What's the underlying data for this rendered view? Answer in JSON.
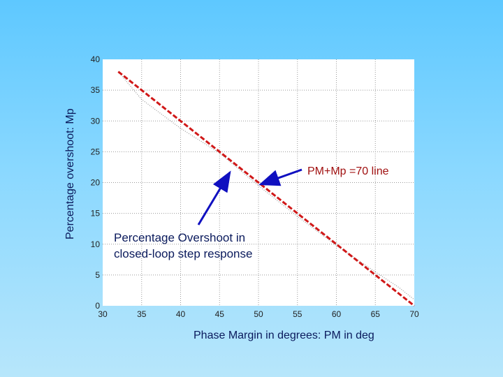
{
  "chart_data": {
    "type": "line",
    "xlabel": "Phase Margin in degrees: PM in deg",
    "ylabel": "Percentage overshoot: Mp",
    "xlim": [
      30,
      70
    ],
    "ylim": [
      0,
      40
    ],
    "xticks": [
      "30",
      "35",
      "40",
      "45",
      "50",
      "55",
      "60",
      "65",
      "70"
    ],
    "yticks": [
      "0",
      "5",
      "10",
      "15",
      "20",
      "25",
      "30",
      "35",
      "40"
    ],
    "grid": true,
    "series": [
      {
        "name": "Percentage Overshoot in closed-loop step response",
        "style": "dotted",
        "color": "#999999",
        "x": [
          32,
          35,
          40,
          45,
          50,
          55,
          60,
          65,
          68,
          70
        ],
        "y": [
          38,
          33.5,
          28.8,
          24.8,
          19.5,
          14.5,
          9.8,
          5.5,
          3,
          1
        ]
      },
      {
        "name": "PM+Mp =70 line",
        "style": "dashed",
        "color": "#d01818",
        "x": [
          32,
          70
        ],
        "y": [
          38,
          0
        ]
      }
    ],
    "annotations": {
      "red_line_label": "PM+Mp =70 line",
      "curve_label_line1": "Percentage Overshoot in",
      "curve_label_line2": "closed-loop step response"
    }
  }
}
